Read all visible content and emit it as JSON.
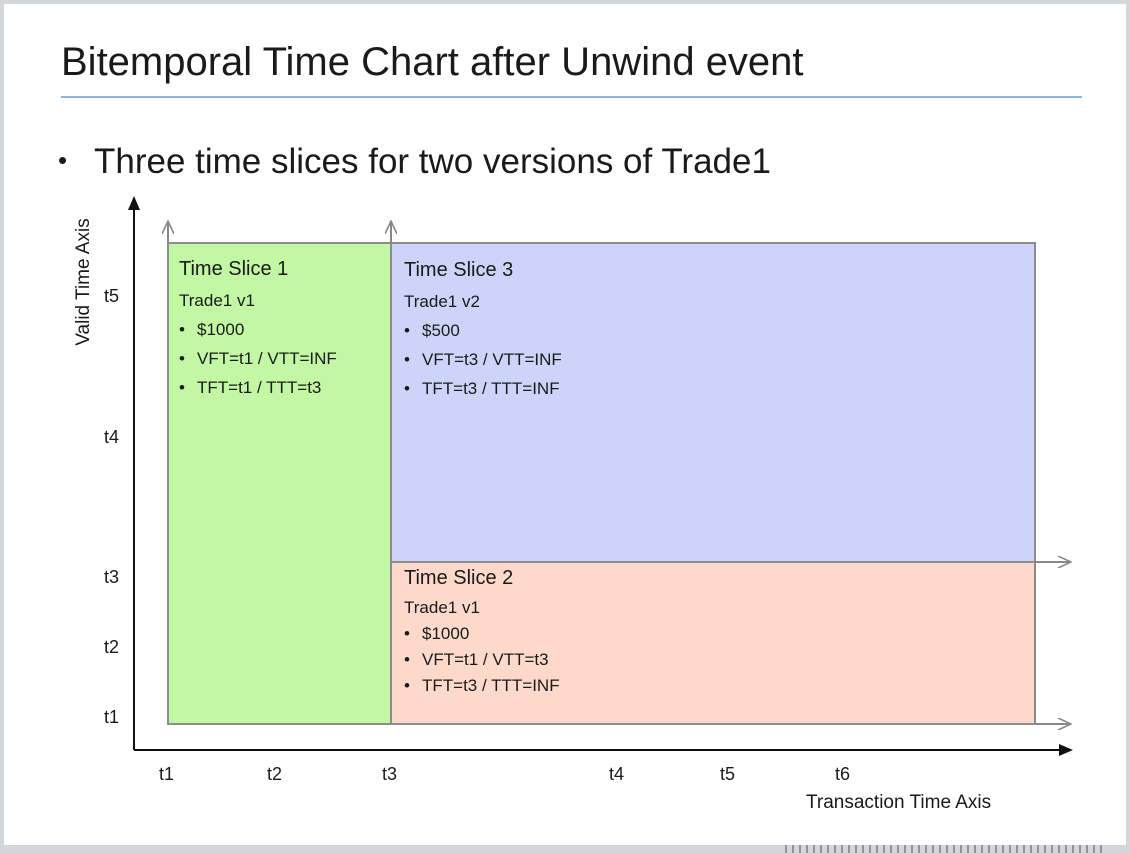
{
  "title": "Bitemporal Time Chart after Unwind event",
  "bullet": "Three time slices for two versions of Trade1",
  "y_axis_title": "Valid Time Axis",
  "x_axis_title": "Transaction Time Axis",
  "y_ticks": [
    "t5",
    "t4",
    "t3",
    "t2",
    "t1"
  ],
  "x_ticks": [
    "t1",
    "t2",
    "t3",
    "t4",
    "t5",
    "t6"
  ],
  "colors": {
    "slice1": "#c2f7a3",
    "slice2": "#fcd9cb",
    "slice3": "#ccd4f9",
    "title_rule": "#8eb3e8"
  },
  "slices": [
    {
      "title": "Time Slice 1",
      "trade": "Trade1 v1",
      "bullets": [
        "$1000",
        "VFT=t1 / VTT=INF",
        "TFT=t1 / TTT=t3"
      ]
    },
    {
      "title": "Time Slice 3",
      "trade": "Trade1 v2",
      "bullets": [
        "$500",
        "VFT=t3 / VTT=INF",
        "TFT=t3 / TTT=INF"
      ]
    },
    {
      "title": "Time Slice 2",
      "trade": "Trade1 v1",
      "bullets": [
        "$1000",
        "VFT=t1 / VTT=t3",
        "TFT=t3 / TTT=INF"
      ]
    }
  ]
}
